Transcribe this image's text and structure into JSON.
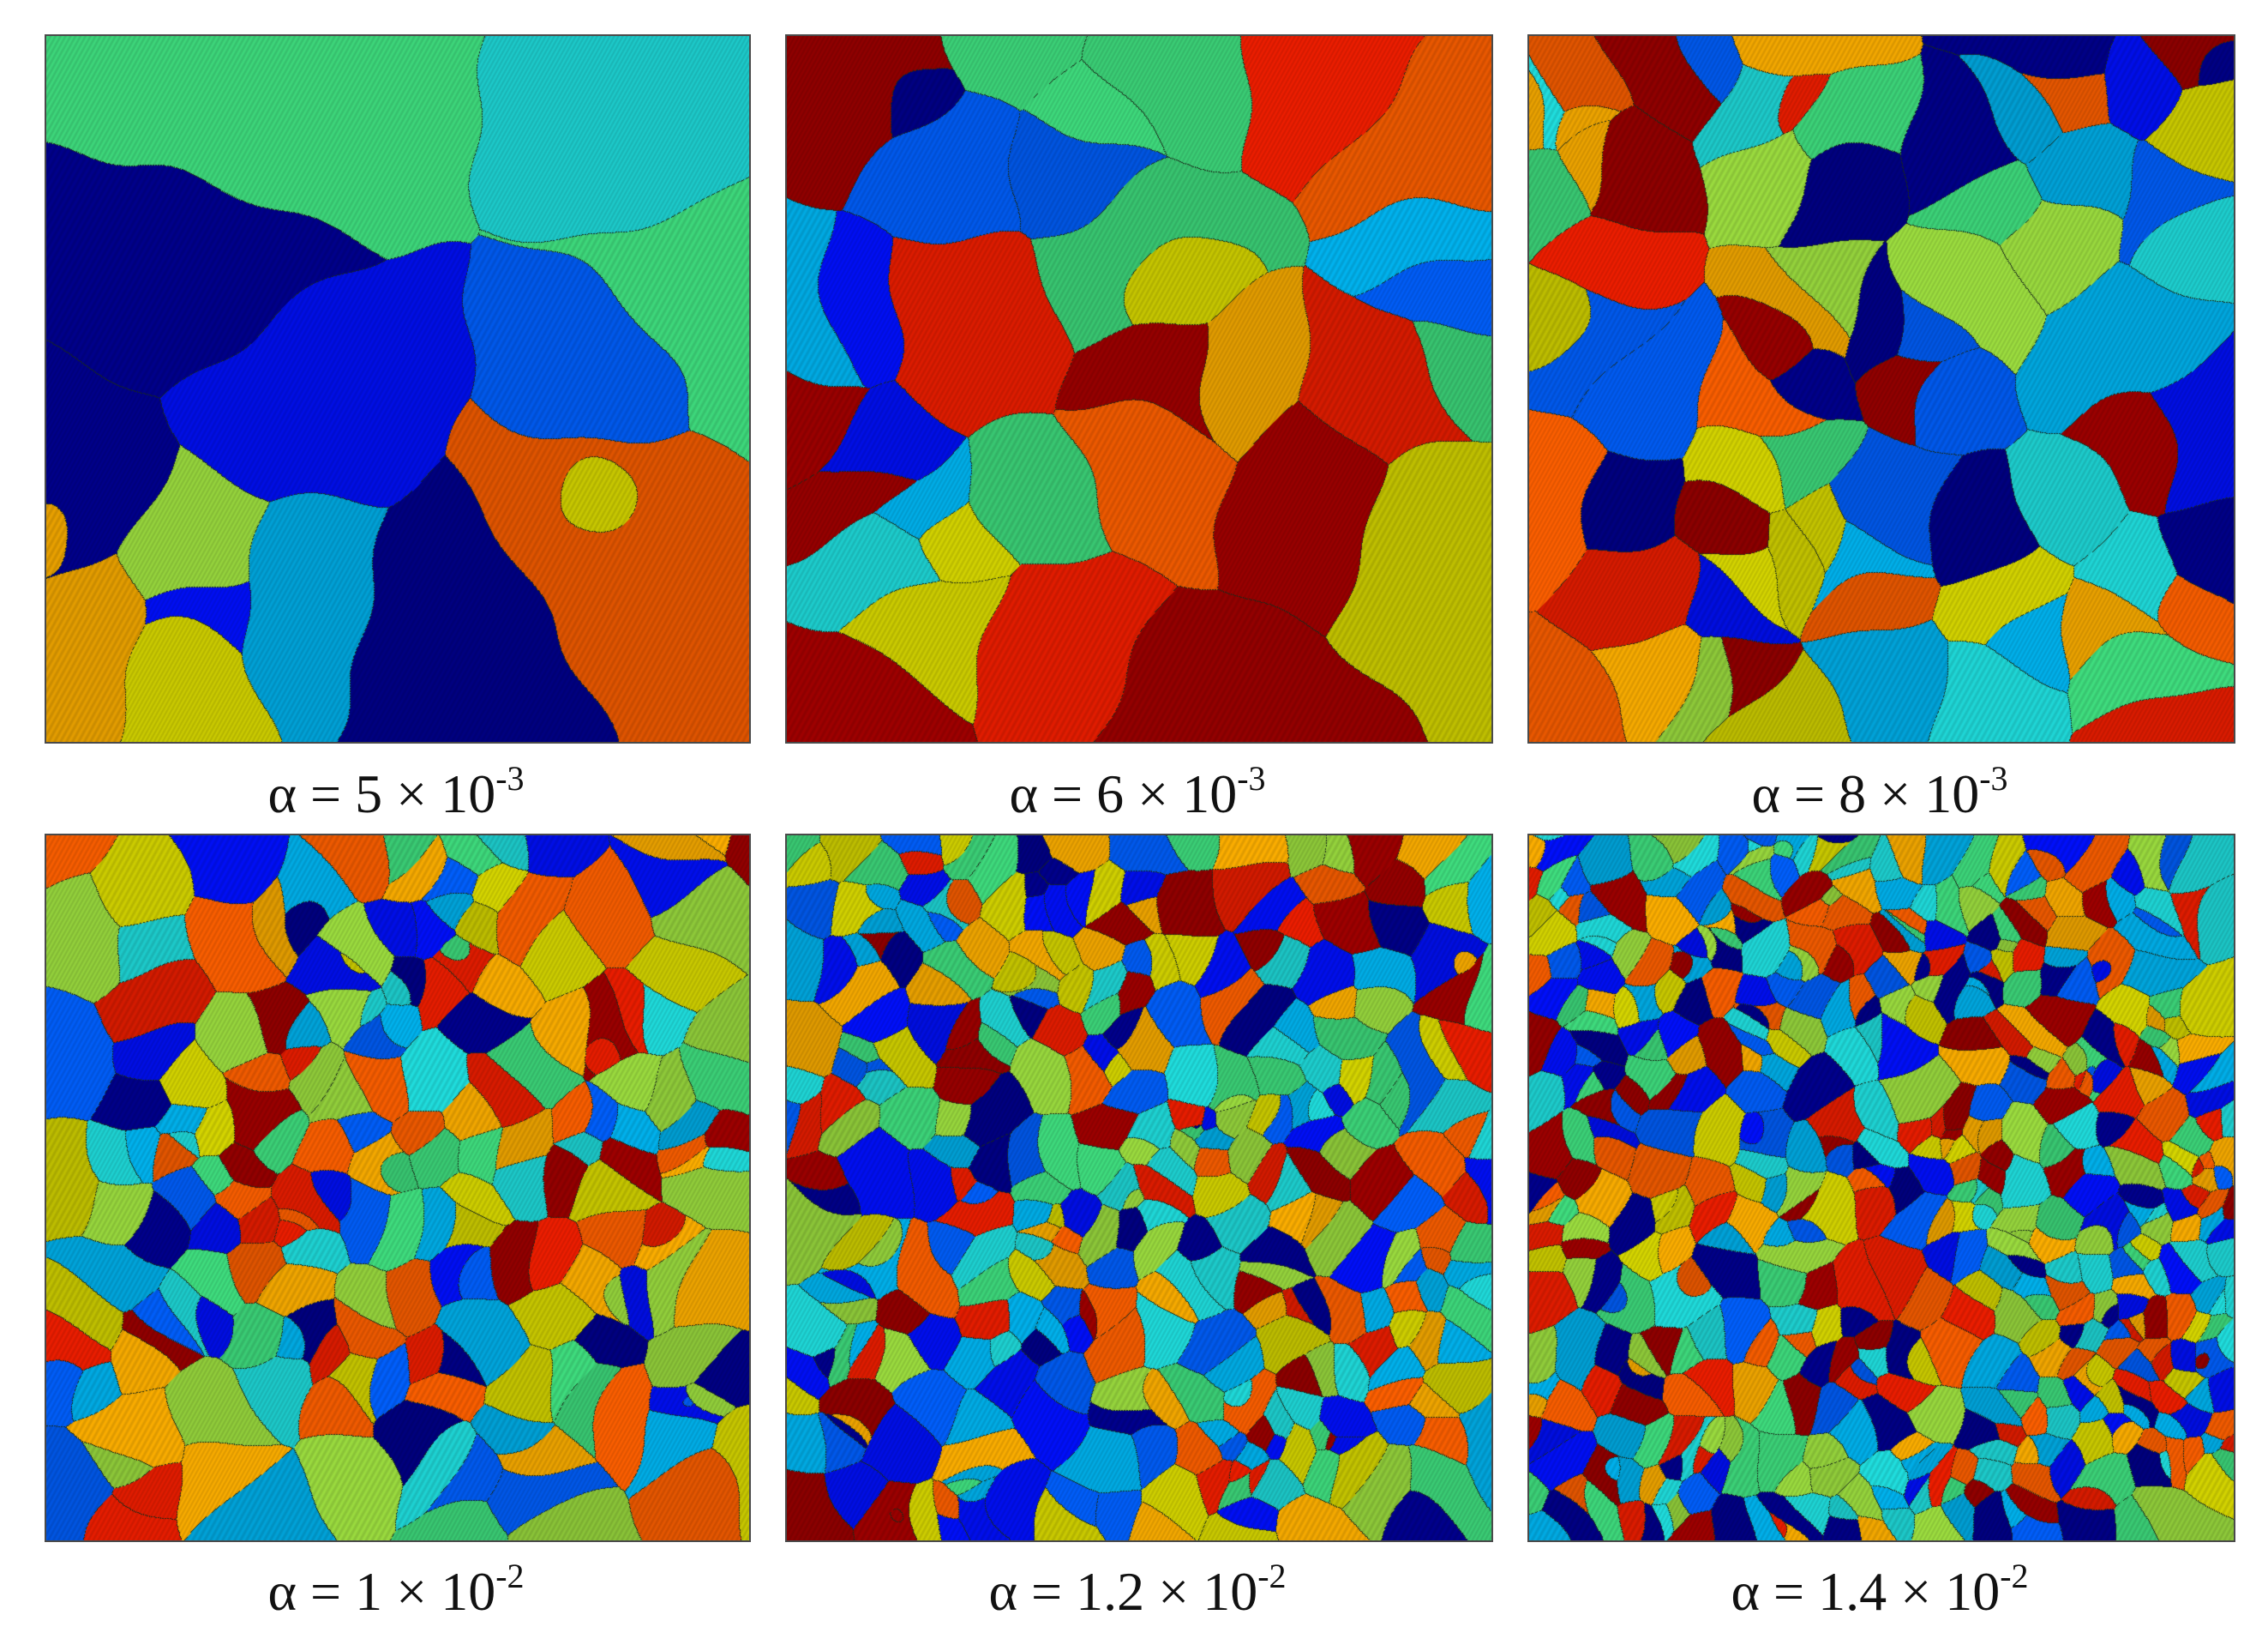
{
  "figure": {
    "colormap": [
      "#00008f",
      "#0010ff",
      "#0060ff",
      "#00b4f0",
      "#20e0e0",
      "#40e080",
      "#9ee040",
      "#d8d800",
      "#ffb000",
      "#ff6000",
      "#f01e00",
      "#a00000"
    ],
    "boundary_color": "#1a2a1a",
    "panels": [
      {
        "alpha": "5",
        "exponent": "-3",
        "grain_count": 16
      },
      {
        "alpha": "6",
        "exponent": "-3",
        "grain_count": 34
      },
      {
        "alpha": "8",
        "exponent": "-3",
        "grain_count": 75
      },
      {
        "alpha": "1",
        "exponent": "-2",
        "grain_count": 190
      },
      {
        "alpha": "1.2",
        "exponent": "-2",
        "grain_count": 330
      },
      {
        "alpha": "1.4",
        "exponent": "-2",
        "grain_count": 520
      }
    ],
    "caption": {
      "symbol": "α",
      "equals": " = ",
      "times": " × 10"
    }
  }
}
